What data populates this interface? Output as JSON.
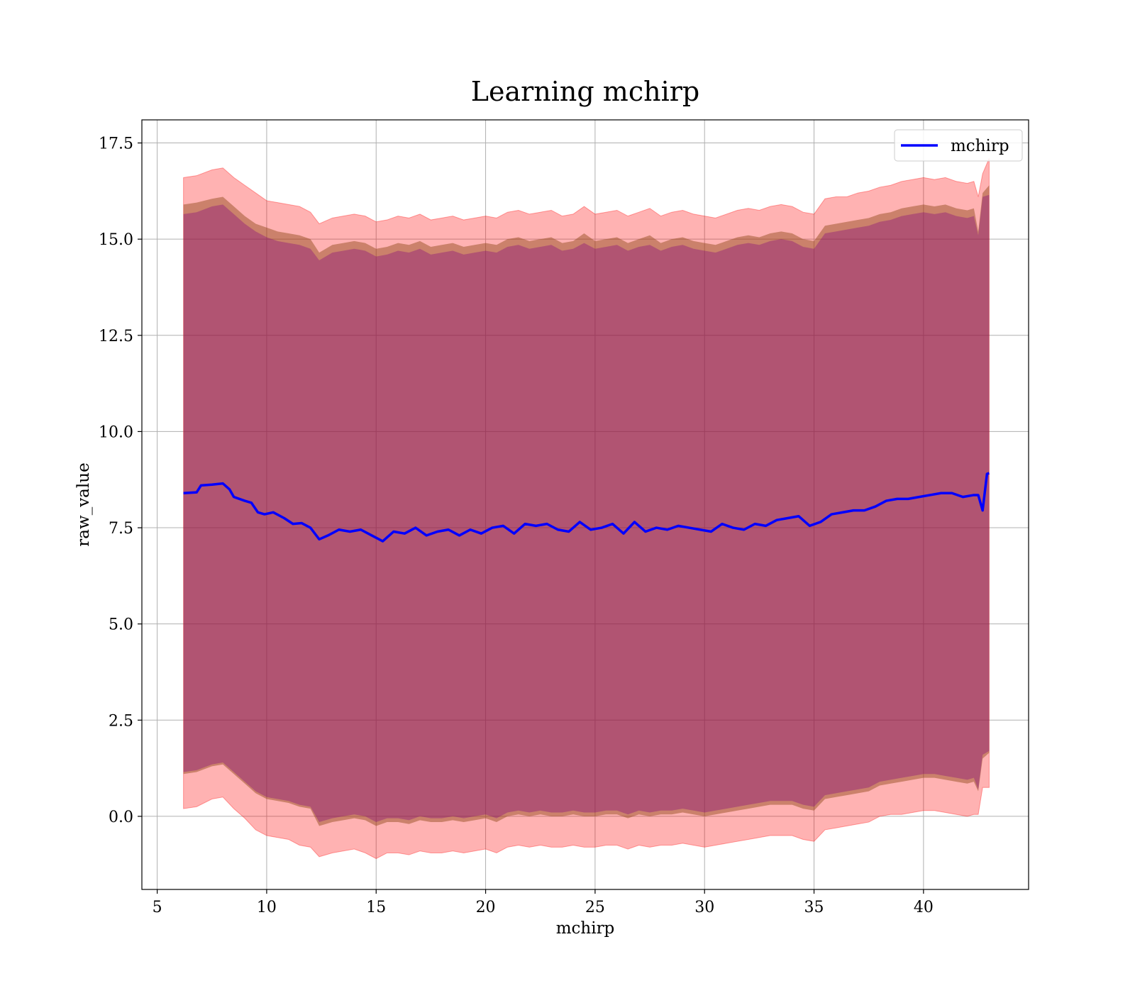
{
  "chart_data": {
    "type": "line",
    "title": "Learning mchirp",
    "xlabel": "mchirp",
    "ylabel": "raw_value",
    "xlim": [
      4.3,
      44.8
    ],
    "ylim": [
      -1.9,
      18.1
    ],
    "xticks": [
      5,
      10,
      15,
      20,
      25,
      30,
      35,
      40
    ],
    "xtick_labels": [
      "5",
      "10",
      "15",
      "20",
      "25",
      "30",
      "35",
      "40"
    ],
    "yticks": [
      0.0,
      2.5,
      5.0,
      7.5,
      10.0,
      12.5,
      15.0,
      17.5
    ],
    "ytick_labels": [
      "0.0",
      "2.5",
      "5.0",
      "7.5",
      "10.0",
      "12.5",
      "15.0",
      "17.5"
    ],
    "grid": true,
    "legend_position": "upper right",
    "colors": {
      "line": "#0000ff",
      "band_outer": "#ff0000",
      "band_middle": "#8b4513",
      "band_inner": "#800080"
    },
    "series": [
      {
        "name": "mchirp",
        "x": [
          6.2,
          6.8,
          7.0,
          7.5,
          8.0,
          8.3,
          8.5,
          9.0,
          9.3,
          9.6,
          9.9,
          10.3,
          10.8,
          11.2,
          11.6,
          12.0,
          12.4,
          12.8,
          13.3,
          13.8,
          14.3,
          14.8,
          15.3,
          15.8,
          16.3,
          16.8,
          17.3,
          17.8,
          18.3,
          18.8,
          19.3,
          19.8,
          20.3,
          20.8,
          21.3,
          21.8,
          22.3,
          22.8,
          23.3,
          23.8,
          24.3,
          24.8,
          25.3,
          25.8,
          26.3,
          26.8,
          27.3,
          27.8,
          28.3,
          28.8,
          29.3,
          29.8,
          30.3,
          30.8,
          31.3,
          31.8,
          32.3,
          32.8,
          33.3,
          33.8,
          34.3,
          34.8,
          35.3,
          35.8,
          36.3,
          36.8,
          37.3,
          37.8,
          38.3,
          38.8,
          39.3,
          39.8,
          40.3,
          40.8,
          41.3,
          41.8,
          42.3,
          42.5,
          42.7,
          42.9,
          43.0
        ],
        "y": [
          8.4,
          8.42,
          8.6,
          8.62,
          8.65,
          8.5,
          8.3,
          8.2,
          8.15,
          7.9,
          7.85,
          7.9,
          7.75,
          7.6,
          7.62,
          7.5,
          7.2,
          7.3,
          7.45,
          7.4,
          7.45,
          7.3,
          7.15,
          7.4,
          7.35,
          7.5,
          7.3,
          7.4,
          7.45,
          7.3,
          7.45,
          7.35,
          7.5,
          7.55,
          7.35,
          7.6,
          7.55,
          7.6,
          7.45,
          7.4,
          7.65,
          7.45,
          7.5,
          7.6,
          7.35,
          7.65,
          7.4,
          7.5,
          7.45,
          7.55,
          7.5,
          7.45,
          7.4,
          7.6,
          7.5,
          7.45,
          7.6,
          7.55,
          7.7,
          7.75,
          7.8,
          7.55,
          7.65,
          7.85,
          7.9,
          7.95,
          7.95,
          8.05,
          8.2,
          8.25,
          8.25,
          8.3,
          8.35,
          8.4,
          8.4,
          8.3,
          8.35,
          8.35,
          7.95,
          8.9,
          8.92
        ]
      }
    ],
    "bands": [
      {
        "x": [
          6.2,
          6.8,
          7.5,
          8.0,
          8.5,
          9.0,
          9.5,
          10.0,
          10.5,
          11.0,
          11.5,
          12.0,
          12.4,
          13.0,
          13.5,
          14.0,
          14.5,
          15.0,
          15.5,
          16.0,
          16.5,
          17.0,
          17.5,
          18.0,
          18.5,
          19.0,
          19.5,
          20.0,
          20.5,
          21.0,
          21.5,
          22.0,
          22.5,
          23.0,
          23.5,
          24.0,
          24.5,
          25.0,
          25.5,
          26.0,
          26.5,
          27.0,
          27.5,
          28.0,
          28.5,
          29.0,
          29.5,
          30.0,
          30.5,
          31.0,
          31.5,
          32.0,
          32.5,
          33.0,
          33.5,
          34.0,
          34.5,
          35.0,
          35.5,
          36.0,
          36.5,
          37.0,
          37.5,
          38.0,
          38.5,
          39.0,
          39.5,
          40.0,
          40.5,
          41.0,
          41.5,
          42.0,
          42.3,
          42.5,
          42.7,
          43.0
        ],
        "outer_upper": [
          16.6,
          16.65,
          16.8,
          16.85,
          16.6,
          16.4,
          16.2,
          16.0,
          15.95,
          15.9,
          15.85,
          15.7,
          15.4,
          15.55,
          15.6,
          15.65,
          15.6,
          15.45,
          15.5,
          15.6,
          15.55,
          15.65,
          15.5,
          15.55,
          15.6,
          15.5,
          15.55,
          15.6,
          15.55,
          15.7,
          15.75,
          15.65,
          15.7,
          15.75,
          15.6,
          15.65,
          15.85,
          15.65,
          15.7,
          15.75,
          15.6,
          15.7,
          15.8,
          15.6,
          15.7,
          15.75,
          15.65,
          15.6,
          15.55,
          15.65,
          15.75,
          15.8,
          15.75,
          15.85,
          15.9,
          15.85,
          15.7,
          15.65,
          16.05,
          16.1,
          16.1,
          16.2,
          16.25,
          16.35,
          16.4,
          16.5,
          16.55,
          16.6,
          16.55,
          16.6,
          16.5,
          16.45,
          16.5,
          16.1,
          16.7,
          17.1
        ],
        "outer_lower": [
          0.2,
          0.25,
          0.45,
          0.5,
          0.2,
          -0.05,
          -0.35,
          -0.5,
          -0.55,
          -0.6,
          -0.75,
          -0.8,
          -1.05,
          -0.95,
          -0.9,
          -0.85,
          -0.95,
          -1.1,
          -0.95,
          -0.95,
          -1.0,
          -0.9,
          -0.95,
          -0.95,
          -0.9,
          -0.95,
          -0.9,
          -0.85,
          -0.95,
          -0.8,
          -0.75,
          -0.8,
          -0.75,
          -0.8,
          -0.8,
          -0.75,
          -0.8,
          -0.8,
          -0.75,
          -0.75,
          -0.85,
          -0.75,
          -0.8,
          -0.75,
          -0.75,
          -0.7,
          -0.75,
          -0.8,
          -0.75,
          -0.7,
          -0.65,
          -0.6,
          -0.55,
          -0.5,
          -0.5,
          -0.5,
          -0.6,
          -0.65,
          -0.35,
          -0.3,
          -0.25,
          -0.2,
          -0.15,
          0.0,
          0.05,
          0.05,
          0.1,
          0.15,
          0.15,
          0.1,
          0.05,
          0.0,
          0.05,
          0.05,
          0.75,
          0.75
        ],
        "middle_upper": [
          15.9,
          15.95,
          16.05,
          16.1,
          15.85,
          15.6,
          15.4,
          15.3,
          15.2,
          15.15,
          15.1,
          15.0,
          14.65,
          14.85,
          14.9,
          14.95,
          14.9,
          14.75,
          14.8,
          14.9,
          14.85,
          14.95,
          14.8,
          14.85,
          14.9,
          14.8,
          14.85,
          14.9,
          14.85,
          15.0,
          15.05,
          14.95,
          15.0,
          15.05,
          14.9,
          14.95,
          15.15,
          14.95,
          15.0,
          15.05,
          14.9,
          15.0,
          15.1,
          14.9,
          15.0,
          15.05,
          14.95,
          14.9,
          14.85,
          14.95,
          15.05,
          15.1,
          15.05,
          15.15,
          15.2,
          15.15,
          15.0,
          14.95,
          15.35,
          15.4,
          15.45,
          15.5,
          15.55,
          15.65,
          15.7,
          15.8,
          15.85,
          15.9,
          15.85,
          15.9,
          15.8,
          15.75,
          15.8,
          15.2,
          16.2,
          16.4
        ],
        "middle_lower": [
          1.1,
          1.15,
          1.3,
          1.35,
          1.1,
          0.85,
          0.6,
          0.45,
          0.4,
          0.35,
          0.25,
          0.2,
          -0.25,
          -0.15,
          -0.1,
          -0.05,
          -0.1,
          -0.25,
          -0.15,
          -0.15,
          -0.2,
          -0.1,
          -0.15,
          -0.15,
          -0.1,
          -0.15,
          -0.1,
          -0.05,
          -0.15,
          0.0,
          0.05,
          0.0,
          0.05,
          0.0,
          0.0,
          0.05,
          0.0,
          0.0,
          0.05,
          0.05,
          -0.05,
          0.05,
          0.0,
          0.05,
          0.05,
          0.1,
          0.05,
          0.0,
          0.05,
          0.1,
          0.15,
          0.2,
          0.25,
          0.3,
          0.3,
          0.3,
          0.2,
          0.15,
          0.45,
          0.5,
          0.55,
          0.6,
          0.65,
          0.8,
          0.85,
          0.9,
          0.95,
          1.0,
          1.0,
          0.95,
          0.9,
          0.85,
          0.9,
          0.65,
          1.5,
          1.65
        ],
        "inner_upper": [
          15.65,
          15.7,
          15.85,
          15.9,
          15.65,
          15.4,
          15.2,
          15.05,
          14.95,
          14.9,
          14.85,
          14.75,
          14.45,
          14.65,
          14.7,
          14.75,
          14.7,
          14.55,
          14.6,
          14.7,
          14.65,
          14.75,
          14.6,
          14.65,
          14.7,
          14.6,
          14.65,
          14.7,
          14.65,
          14.8,
          14.85,
          14.75,
          14.8,
          14.85,
          14.7,
          14.75,
          14.9,
          14.75,
          14.8,
          14.85,
          14.7,
          14.8,
          14.85,
          14.7,
          14.8,
          14.85,
          14.75,
          14.7,
          14.65,
          14.75,
          14.85,
          14.9,
          14.85,
          14.95,
          15.0,
          14.95,
          14.8,
          14.75,
          15.15,
          15.2,
          15.25,
          15.3,
          15.35,
          15.45,
          15.5,
          15.6,
          15.65,
          15.7,
          15.65,
          15.7,
          15.6,
          15.55,
          15.6,
          15.1,
          16.1,
          16.15
        ],
        "inner_lower": [
          1.15,
          1.2,
          1.35,
          1.4,
          1.15,
          0.9,
          0.65,
          0.5,
          0.45,
          0.4,
          0.3,
          0.25,
          -0.15,
          -0.05,
          0.0,
          0.05,
          0.0,
          -0.15,
          -0.05,
          -0.05,
          -0.1,
          0.0,
          -0.05,
          -0.05,
          0.0,
          -0.05,
          0.0,
          0.05,
          -0.05,
          0.1,
          0.15,
          0.1,
          0.15,
          0.1,
          0.1,
          0.15,
          0.1,
          0.1,
          0.15,
          0.15,
          0.05,
          0.15,
          0.1,
          0.15,
          0.15,
          0.2,
          0.15,
          0.1,
          0.15,
          0.2,
          0.25,
          0.3,
          0.35,
          0.4,
          0.4,
          0.4,
          0.3,
          0.25,
          0.55,
          0.6,
          0.65,
          0.7,
          0.75,
          0.9,
          0.95,
          1.0,
          1.05,
          1.1,
          1.1,
          1.05,
          1.0,
          0.95,
          1.0,
          0.7,
          1.6,
          1.7
        ]
      }
    ]
  }
}
